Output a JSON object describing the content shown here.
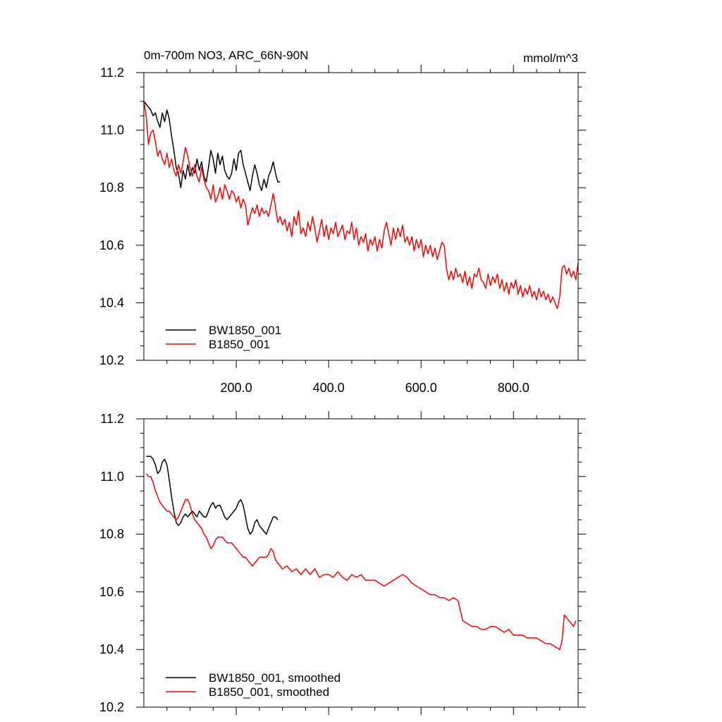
{
  "chart_data": [
    {
      "type": "line",
      "title": "0m-700m NO3, ARC_66N-90N",
      "units": "mmol/m^3",
      "xlim": [
        0,
        940
      ],
      "ylim": [
        10.2,
        11.2
      ],
      "xticks": [
        "200.0",
        "400.0",
        "600.0",
        "800.0"
      ],
      "yticks": [
        "10.2",
        "10.4",
        "10.6",
        "10.8",
        "11.0",
        "11.2"
      ],
      "legend_position": "bottom-left",
      "grid": false,
      "series": [
        {
          "name": "BW1850_001",
          "color": "#000000",
          "x": [
            0,
            5,
            10,
            15,
            20,
            25,
            30,
            35,
            40,
            45,
            50,
            55,
            60,
            65,
            70,
            75,
            80,
            85,
            90,
            95,
            100,
            105,
            110,
            115,
            120,
            125,
            130,
            135,
            140,
            145,
            150,
            155,
            160,
            165,
            170,
            175,
            180,
            185,
            190,
            195,
            200,
            205,
            210,
            215,
            220,
            225,
            230,
            235,
            240,
            245,
            250,
            255,
            260,
            265,
            270,
            275,
            280,
            285,
            290,
            295
          ],
          "y": [
            11.1,
            11.09,
            11.08,
            11.07,
            11.05,
            11.06,
            11.03,
            11.01,
            11.06,
            11.03,
            11.07,
            11.04,
            10.98,
            10.93,
            10.87,
            10.85,
            10.8,
            10.86,
            10.83,
            10.88,
            10.84,
            10.87,
            10.85,
            10.9,
            10.86,
            10.89,
            10.84,
            10.82,
            10.87,
            10.93,
            10.9,
            10.85,
            10.92,
            10.88,
            10.91,
            10.86,
            10.84,
            10.83,
            10.85,
            10.9,
            10.86,
            10.92,
            10.93,
            10.88,
            10.85,
            10.82,
            10.79,
            10.84,
            10.88,
            10.85,
            10.81,
            10.79,
            10.83,
            10.8,
            10.84,
            10.86,
            10.89,
            10.85,
            10.82,
            10.82
          ]
        },
        {
          "name": "B1850_001",
          "color": "#ff0000",
          "x": [
            0,
            5,
            10,
            15,
            20,
            25,
            30,
            35,
            40,
            45,
            50,
            55,
            60,
            65,
            70,
            75,
            80,
            85,
            90,
            95,
            100,
            105,
            110,
            115,
            120,
            125,
            130,
            135,
            140,
            145,
            150,
            155,
            160,
            165,
            170,
            175,
            180,
            185,
            190,
            195,
            200,
            205,
            210,
            215,
            220,
            225,
            230,
            235,
            240,
            245,
            250,
            255,
            260,
            265,
            270,
            275,
            280,
            285,
            290,
            295,
            300,
            305,
            310,
            315,
            320,
            325,
            330,
            335,
            340,
            345,
            350,
            355,
            360,
            365,
            370,
            375,
            380,
            385,
            390,
            395,
            400,
            405,
            410,
            415,
            420,
            425,
            430,
            435,
            440,
            445,
            450,
            455,
            460,
            465,
            470,
            475,
            480,
            485,
            490,
            495,
            500,
            505,
            510,
            515,
            520,
            525,
            530,
            535,
            540,
            545,
            550,
            555,
            560,
            565,
            570,
            575,
            580,
            585,
            590,
            595,
            600,
            605,
            610,
            615,
            620,
            625,
            630,
            635,
            640,
            645,
            650,
            655,
            660,
            665,
            670,
            675,
            680,
            685,
            690,
            695,
            700,
            705,
            710,
            715,
            720,
            725,
            730,
            735,
            740,
            745,
            750,
            755,
            760,
            765,
            770,
            775,
            780,
            785,
            790,
            795,
            800,
            805,
            810,
            815,
            820,
            825,
            830,
            835,
            840,
            845,
            850,
            855,
            860,
            865,
            870,
            875,
            880,
            885,
            890,
            895,
            900,
            905,
            910,
            915,
            920,
            925,
            930,
            935,
            940
          ],
          "y": [
            11.1,
            11.05,
            10.95,
            10.99,
            11.0,
            10.96,
            10.91,
            10.93,
            10.9,
            10.88,
            10.92,
            10.87,
            10.9,
            10.86,
            10.84,
            10.88,
            10.85,
            10.89,
            10.94,
            10.91,
            10.87,
            10.84,
            10.88,
            10.84,
            10.82,
            10.87,
            10.83,
            10.8,
            10.79,
            10.76,
            10.81,
            10.75,
            10.77,
            10.8,
            10.76,
            10.81,
            10.79,
            10.76,
            10.79,
            10.78,
            10.75,
            10.77,
            10.73,
            10.76,
            10.74,
            10.67,
            10.7,
            10.73,
            10.71,
            10.74,
            10.7,
            10.73,
            10.71,
            10.72,
            10.7,
            10.74,
            10.78,
            10.73,
            10.68,
            10.7,
            10.67,
            10.69,
            10.65,
            10.68,
            10.63,
            10.7,
            10.67,
            10.72,
            10.64,
            10.66,
            10.63,
            10.68,
            10.65,
            10.7,
            10.66,
            10.61,
            10.65,
            10.69,
            10.63,
            10.67,
            10.62,
            10.66,
            10.64,
            10.68,
            10.63,
            10.65,
            10.67,
            10.62,
            10.65,
            10.64,
            10.68,
            10.62,
            10.66,
            10.6,
            10.63,
            10.61,
            10.64,
            10.58,
            10.62,
            10.6,
            10.63,
            10.58,
            10.62,
            10.59,
            10.65,
            10.68,
            10.64,
            10.6,
            10.66,
            10.62,
            10.66,
            10.63,
            10.67,
            10.61,
            10.63,
            10.6,
            10.63,
            10.58,
            10.62,
            10.59,
            10.62,
            10.56,
            10.6,
            10.57,
            10.6,
            10.56,
            10.59,
            10.55,
            10.58,
            10.61,
            10.6,
            10.52,
            10.48,
            10.51,
            10.48,
            10.52,
            10.49,
            10.5,
            10.47,
            10.51,
            10.46,
            10.49,
            10.45,
            10.5,
            10.49,
            10.52,
            10.48,
            10.47,
            10.45,
            10.5,
            10.46,
            10.49,
            10.47,
            10.5,
            10.45,
            10.48,
            10.44,
            10.47,
            10.43,
            10.47,
            10.45,
            10.48,
            10.43,
            10.46,
            10.42,
            10.45,
            10.43,
            10.46,
            10.42,
            10.44,
            10.41,
            10.45,
            10.42,
            10.44,
            10.41,
            10.43,
            10.4,
            10.42,
            10.4,
            10.38,
            10.42,
            10.52,
            10.53,
            10.5,
            10.52,
            10.49,
            10.51,
            10.48,
            10.54
          ]
        }
      ]
    },
    {
      "type": "line",
      "title": "",
      "units": "",
      "xlim": [
        0,
        940
      ],
      "ylim": [
        10.2,
        11.2
      ],
      "xticks": [],
      "yticks": [
        "10.2",
        "10.4",
        "10.6",
        "10.8",
        "11.0",
        "11.2"
      ],
      "legend_position": "bottom-left",
      "grid": false,
      "series": [
        {
          "name": "BW1850_001, smoothed",
          "color": "#000000",
          "x": [
            5,
            10,
            15,
            20,
            25,
            30,
            35,
            40,
            45,
            50,
            55,
            60,
            65,
            70,
            75,
            80,
            85,
            90,
            95,
            100,
            105,
            110,
            115,
            120,
            125,
            130,
            135,
            140,
            145,
            150,
            155,
            160,
            165,
            170,
            175,
            180,
            185,
            190,
            195,
            200,
            205,
            210,
            215,
            220,
            225,
            230,
            235,
            240,
            245,
            250,
            255,
            260,
            265,
            270,
            275,
            280,
            285,
            290
          ],
          "y": [
            11.07,
            11.07,
            11.07,
            11.06,
            11.04,
            11.01,
            11.02,
            11.05,
            11.06,
            11.04,
            10.99,
            10.93,
            10.88,
            10.84,
            10.83,
            10.84,
            10.86,
            10.87,
            10.86,
            10.87,
            10.88,
            10.87,
            10.86,
            10.88,
            10.87,
            10.86,
            10.86,
            10.88,
            10.9,
            10.91,
            10.89,
            10.9,
            10.9,
            10.88,
            10.86,
            10.85,
            10.86,
            10.87,
            10.88,
            10.89,
            10.91,
            10.92,
            10.9,
            10.86,
            10.82,
            10.8,
            10.81,
            10.84,
            10.85,
            10.83,
            10.82,
            10.81,
            10.8,
            10.82,
            10.84,
            10.86,
            10.86,
            10.85
          ]
        },
        {
          "name": "B1850_001, smoothed",
          "color": "#ff0000",
          "x": [
            5,
            10,
            15,
            20,
            25,
            30,
            35,
            40,
            45,
            50,
            55,
            60,
            65,
            70,
            75,
            80,
            85,
            90,
            95,
            100,
            105,
            110,
            115,
            120,
            125,
            130,
            135,
            140,
            145,
            150,
            155,
            160,
            165,
            170,
            175,
            180,
            185,
            190,
            195,
            200,
            205,
            210,
            215,
            220,
            225,
            230,
            235,
            240,
            245,
            250,
            255,
            260,
            265,
            270,
            275,
            280,
            285,
            290,
            295,
            300,
            310,
            320,
            330,
            340,
            350,
            360,
            370,
            380,
            390,
            400,
            410,
            420,
            430,
            440,
            450,
            460,
            470,
            480,
            490,
            500,
            510,
            520,
            530,
            540,
            550,
            560,
            570,
            580,
            590,
            600,
            610,
            620,
            630,
            640,
            650,
            660,
            670,
            680,
            690,
            700,
            710,
            720,
            730,
            740,
            750,
            760,
            770,
            780,
            790,
            800,
            810,
            820,
            830,
            840,
            850,
            860,
            870,
            880,
            890,
            900,
            905,
            910,
            915,
            920,
            925,
            930,
            935
          ],
          "y": [
            11.01,
            11.0,
            11.0,
            10.98,
            10.95,
            10.93,
            10.91,
            10.9,
            10.89,
            10.88,
            10.88,
            10.87,
            10.86,
            10.85,
            10.86,
            10.88,
            10.9,
            10.92,
            10.92,
            10.9,
            10.87,
            10.85,
            10.84,
            10.83,
            10.82,
            10.8,
            10.79,
            10.77,
            10.75,
            10.76,
            10.78,
            10.79,
            10.79,
            10.79,
            10.78,
            10.77,
            10.77,
            10.77,
            10.76,
            10.75,
            10.74,
            10.73,
            10.72,
            10.72,
            10.71,
            10.7,
            10.69,
            10.7,
            10.71,
            10.72,
            10.72,
            10.72,
            10.72,
            10.73,
            10.75,
            10.74,
            10.71,
            10.7,
            10.69,
            10.68,
            10.69,
            10.67,
            10.68,
            10.66,
            10.68,
            10.66,
            10.68,
            10.65,
            10.66,
            10.66,
            10.65,
            10.67,
            10.65,
            10.64,
            10.66,
            10.65,
            10.66,
            10.64,
            10.64,
            10.64,
            10.63,
            10.62,
            10.63,
            10.64,
            10.65,
            10.66,
            10.65,
            10.63,
            10.62,
            10.61,
            10.6,
            10.59,
            10.59,
            10.58,
            10.58,
            10.57,
            10.58,
            10.57,
            10.5,
            10.49,
            10.48,
            10.48,
            10.47,
            10.47,
            10.48,
            10.48,
            10.47,
            10.46,
            10.47,
            10.45,
            10.45,
            10.45,
            10.44,
            10.44,
            10.44,
            10.43,
            10.42,
            10.42,
            10.41,
            10.4,
            10.43,
            10.52,
            10.51,
            10.5,
            10.49,
            10.48,
            10.5
          ]
        }
      ]
    }
  ]
}
